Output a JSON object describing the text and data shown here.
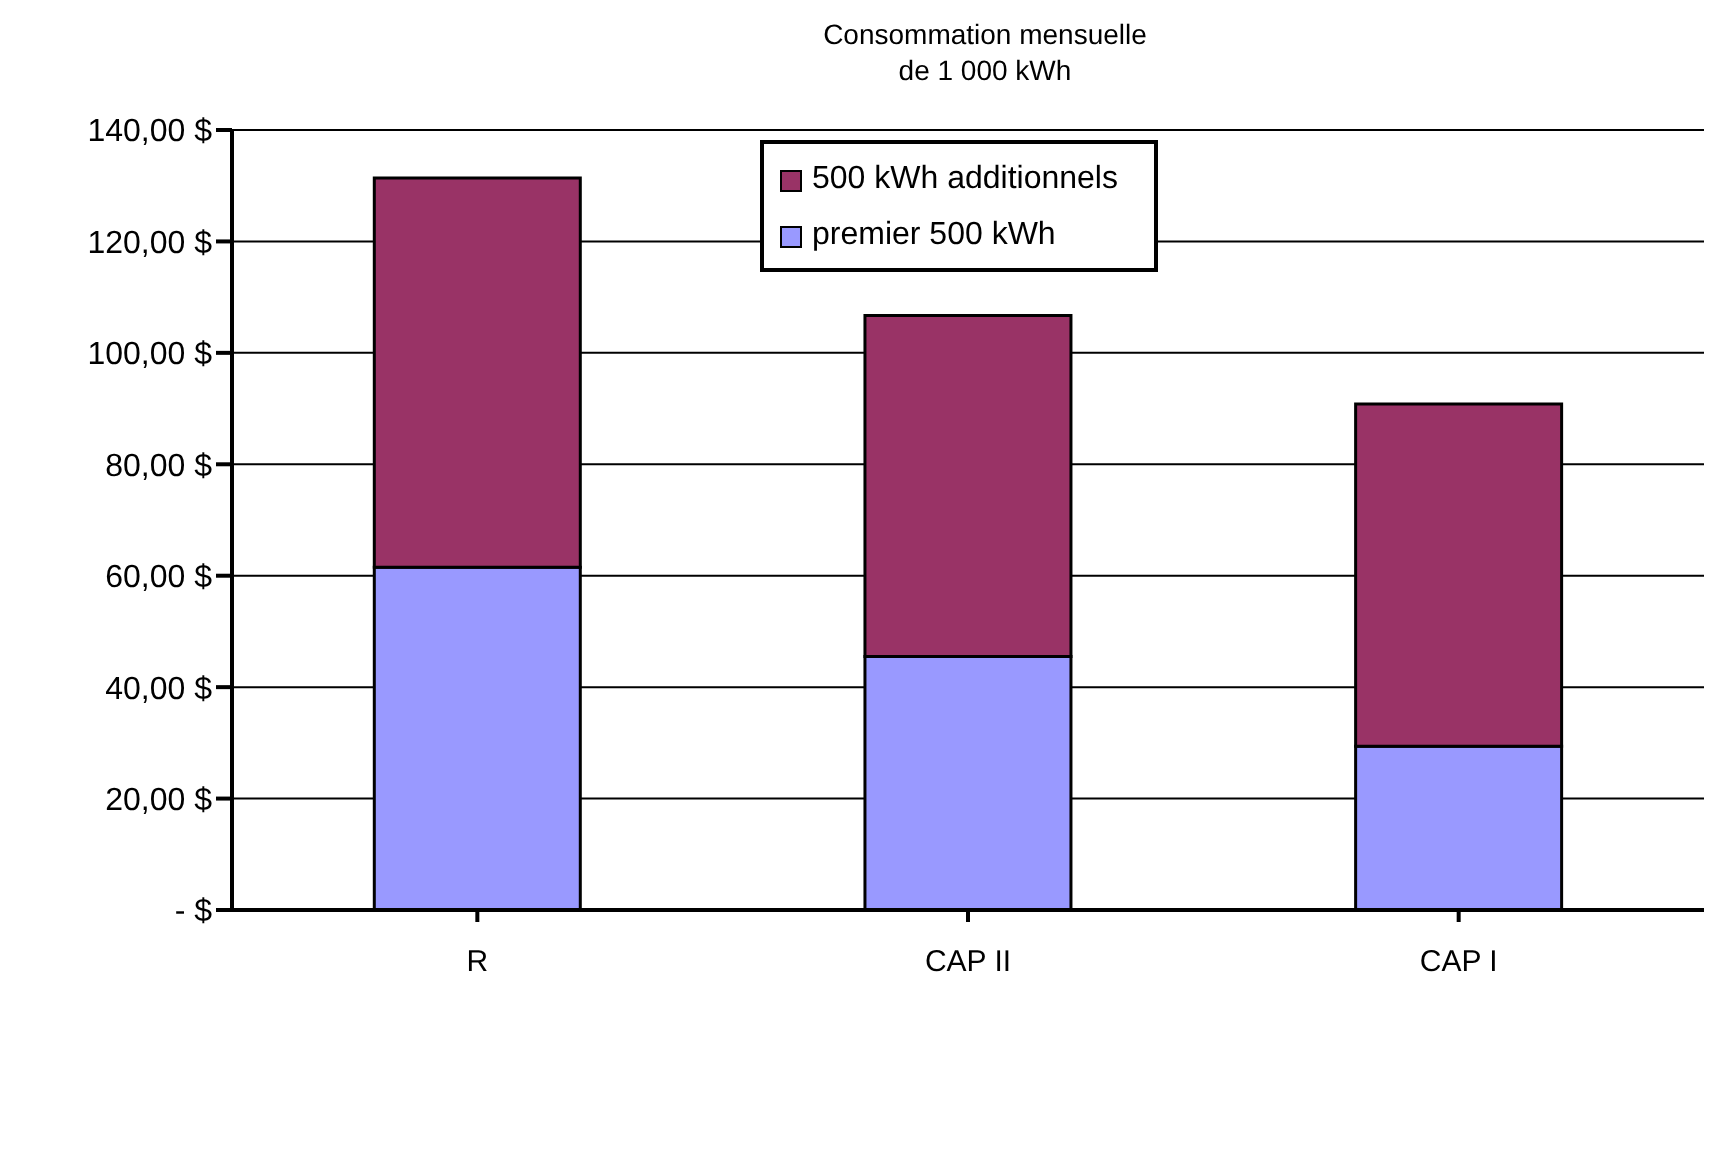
{
  "chart_data": {
    "type": "bar",
    "title": "Consommation mensuelle de 1 000 kWh",
    "categories": [
      "R",
      "CAP II",
      "CAP I"
    ],
    "stacked": true,
    "series": [
      {
        "name": "premier 500 kWh",
        "color": "#9999ff",
        "values": [
          61.5,
          45.5,
          29.4
        ]
      },
      {
        "name": "500 kWh additionnels",
        "color": "#993366",
        "values": [
          69.9,
          61.2,
          61.4
        ]
      }
    ],
    "ylim": [
      0,
      140
    ],
    "yticks": [
      {
        "value": 0,
        "label": "-   $"
      },
      {
        "value": 20,
        "label": "20,00 $"
      },
      {
        "value": 40,
        "label": "40,00 $"
      },
      {
        "value": 60,
        "label": "60,00 $"
      },
      {
        "value": 80,
        "label": "80,00 $"
      },
      {
        "value": 100,
        "label": "100,00 $"
      },
      {
        "value": 120,
        "label": "120,00 $"
      },
      {
        "value": 140,
        "label": "140,00 $"
      }
    ],
    "grid": "y",
    "legend": "top right"
  }
}
